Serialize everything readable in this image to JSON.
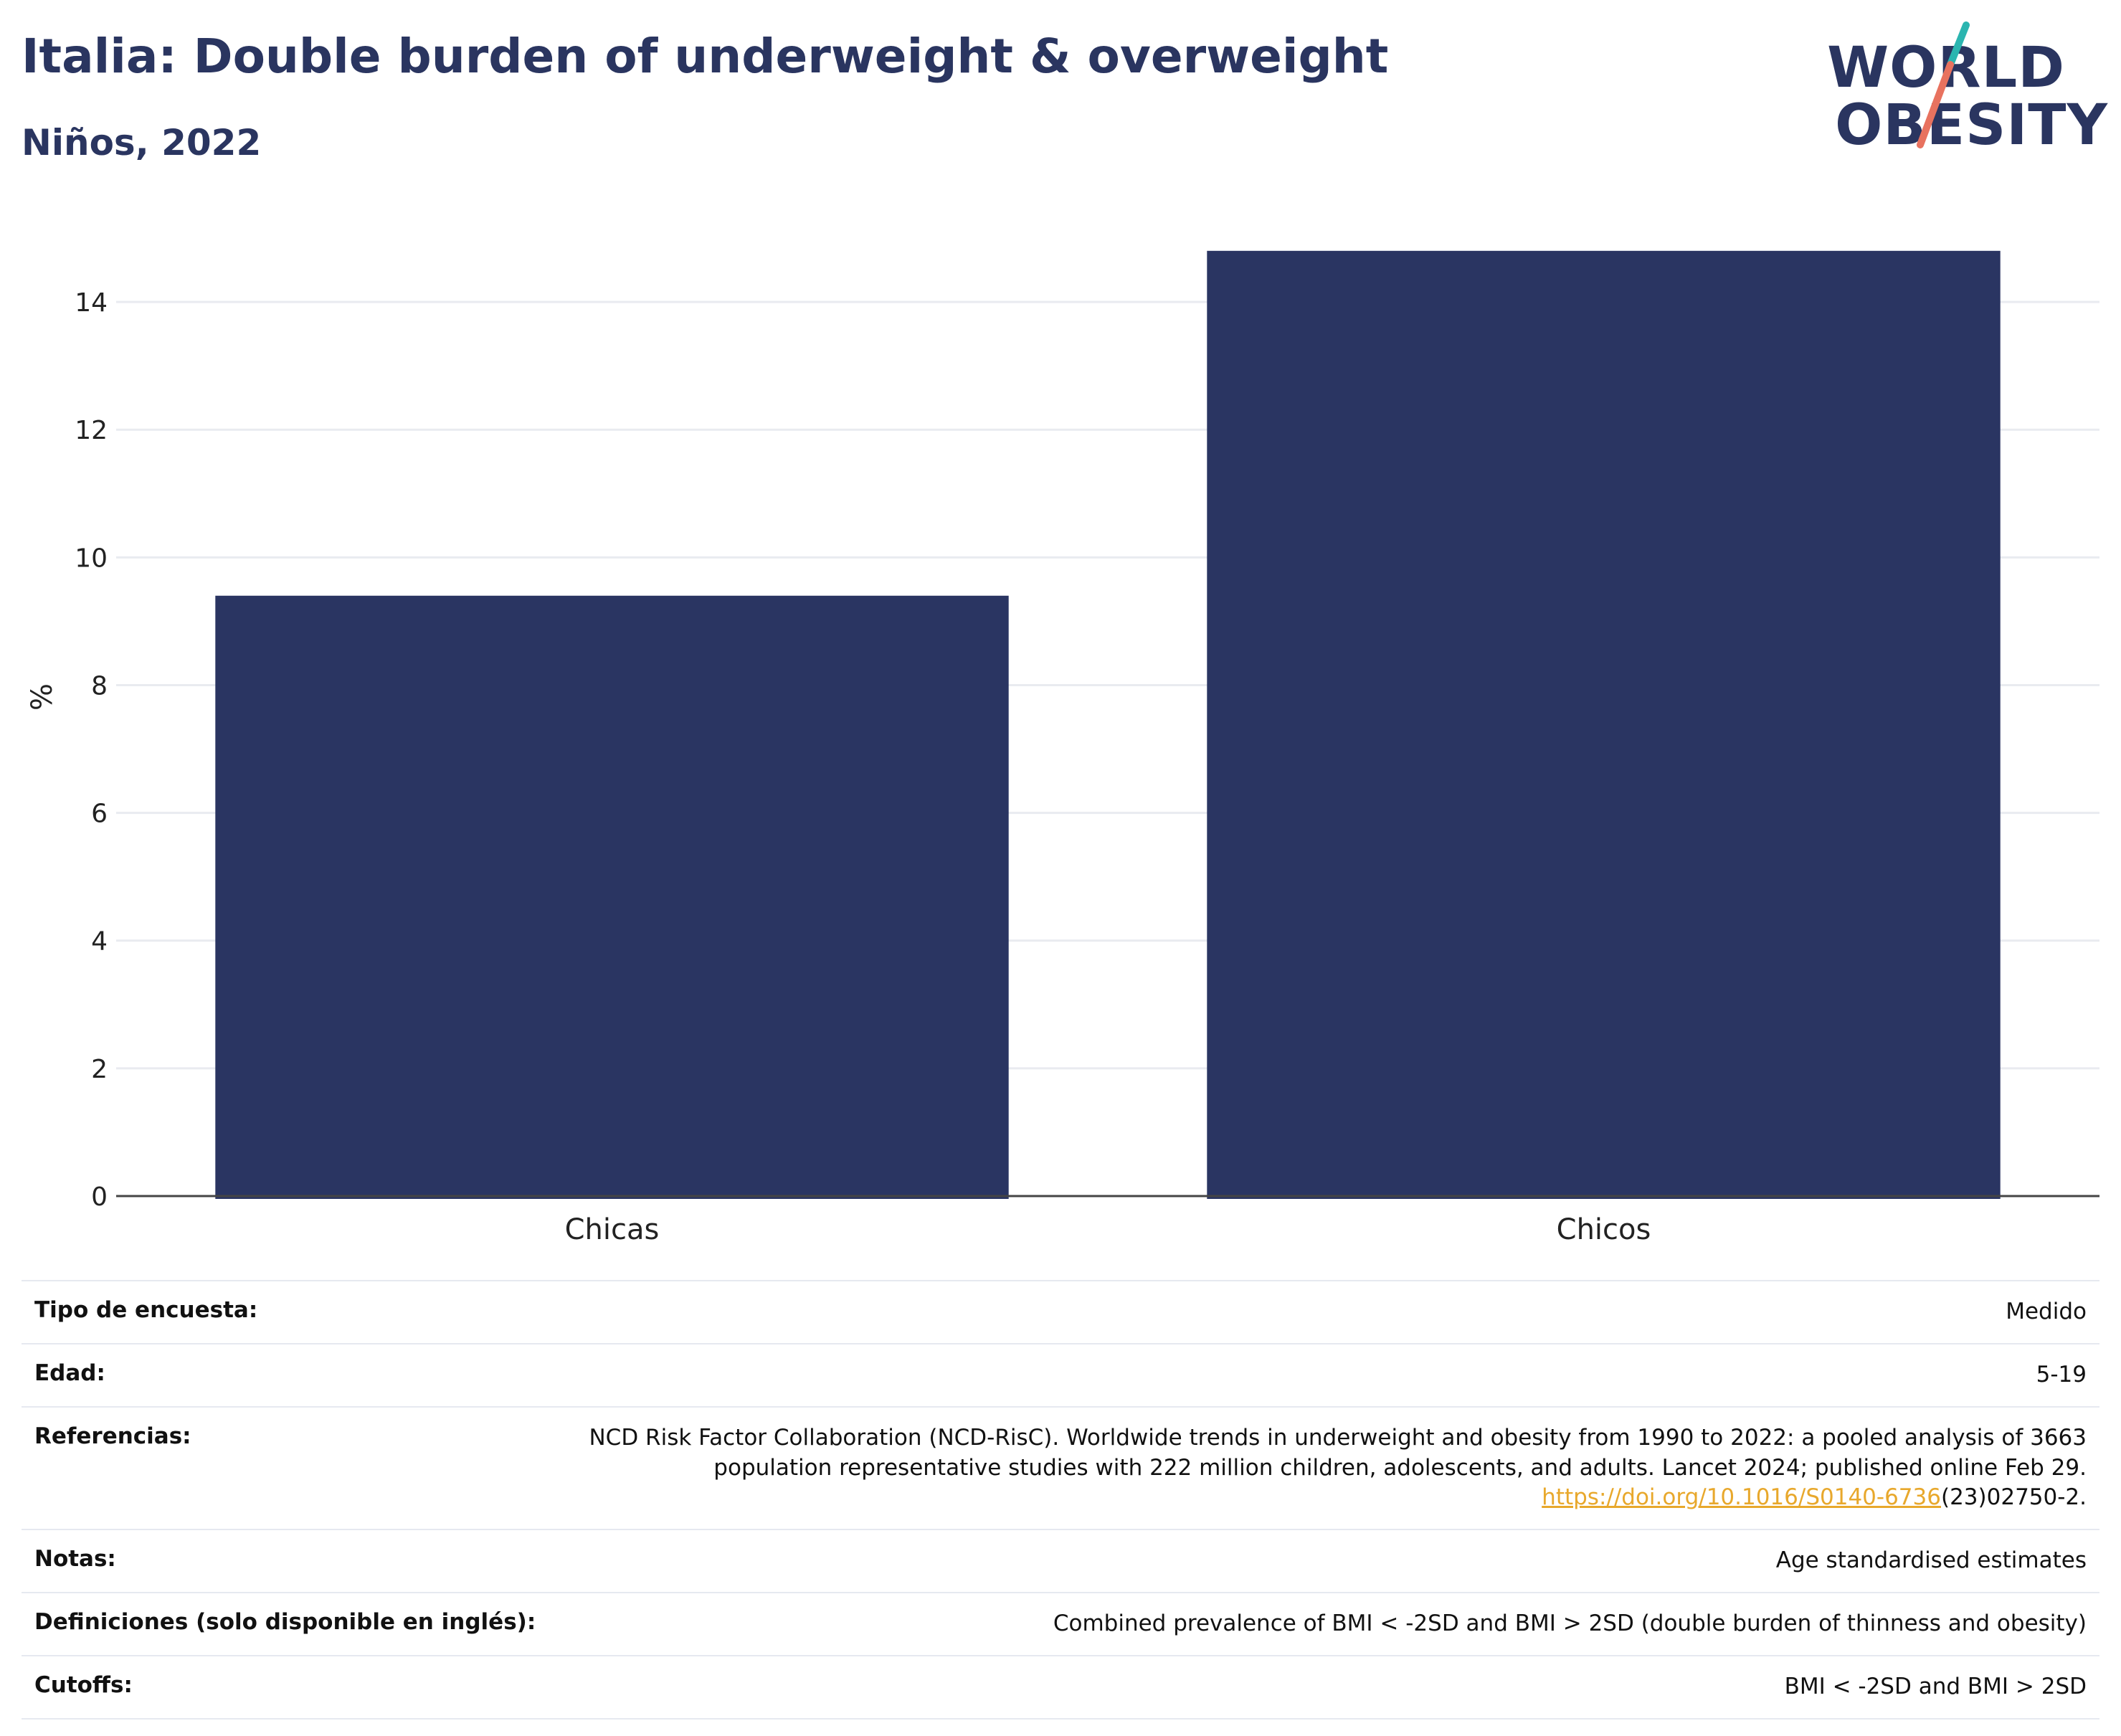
{
  "header": {
    "title": "Italia: Double burden of underweight & overweight",
    "subtitle": "Niños, 2022"
  },
  "logo": {
    "line1": "WORLD",
    "line2": "OBESITY"
  },
  "colors": {
    "bar": "#2a3562",
    "grid": "#e9ebf0",
    "axis": "#444444",
    "logo_teal": "#2bb5b0",
    "logo_coral": "#e8725f",
    "link": "#e8a82c"
  },
  "chart_data": {
    "type": "bar",
    "categories": [
      "Chicas",
      "Chicos"
    ],
    "values": [
      9.4,
      14.8
    ],
    "ylabel": "%",
    "ylim": [
      0,
      15
    ],
    "yticks": [
      0,
      2,
      4,
      6,
      8,
      10,
      12,
      14
    ],
    "grid": true
  },
  "info": [
    {
      "label": "Tipo de encuesta:",
      "value": "Medido"
    },
    {
      "label": "Edad:",
      "value": "5-19"
    },
    {
      "label": "Referencias:",
      "value": "NCD Risk Factor Collaboration (NCD-RisC). Worldwide trends in underweight and obesity from 1990 to 2022: a pooled analysis of 3663 population representative studies with 222 million children, adolescents, and adults. Lancet 2024; published online Feb 29.",
      "link": "https://doi.org/10.1016/S0140-6736",
      "link_suffix": "(23)02750-2."
    },
    {
      "label": "Notas:",
      "value": "Age standardised estimates"
    },
    {
      "label": "Definiciones (solo disponible en inglés):",
      "value": "Combined prevalence of BMI < -2SD and BMI > 2SD (double burden of thinness and obesity)"
    },
    {
      "label": "Cutoffs:",
      "value": "BMI < -2SD and BMI > 2SD"
    }
  ]
}
